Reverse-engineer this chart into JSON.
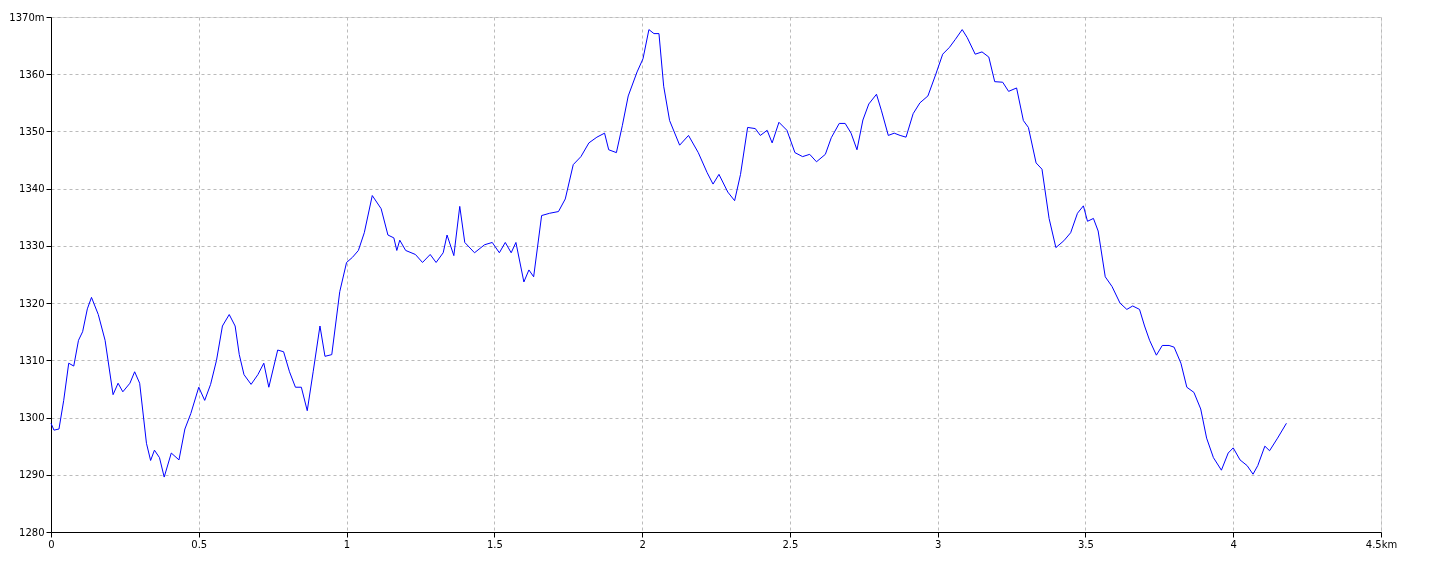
{
  "chart_data": {
    "type": "line",
    "x": [
      0,
      0.01,
      0.027,
      0.043,
      0.06,
      0.077,
      0.093,
      0.107,
      0.123,
      0.137,
      0.16,
      0.183,
      0.21,
      0.227,
      0.243,
      0.267,
      0.283,
      0.3,
      0.323,
      0.337,
      0.35,
      0.367,
      0.383,
      0.407,
      0.433,
      0.453,
      0.473,
      0.5,
      0.52,
      0.54,
      0.56,
      0.58,
      0.603,
      0.623,
      0.637,
      0.653,
      0.677,
      0.7,
      0.72,
      0.737,
      0.767,
      0.787,
      0.807,
      0.827,
      0.847,
      0.867,
      0.887,
      0.91,
      0.927,
      0.95,
      0.977,
      1.0,
      1.02,
      1.04,
      1.06,
      1.087,
      1.117,
      1.14,
      1.16,
      1.17,
      1.18,
      1.2,
      1.233,
      1.257,
      1.283,
      1.303,
      1.327,
      1.34,
      1.363,
      1.383,
      1.4,
      1.433,
      1.467,
      1.493,
      1.517,
      1.537,
      1.557,
      1.573,
      1.6,
      1.617,
      1.633,
      1.66,
      1.687,
      1.717,
      1.74,
      1.767,
      1.793,
      1.82,
      1.847,
      1.873,
      1.887,
      1.913,
      1.933,
      1.953,
      1.983,
      2.003,
      2.023,
      2.04,
      2.057,
      2.073,
      2.093,
      2.127,
      2.157,
      2.19,
      2.22,
      2.24,
      2.26,
      2.29,
      2.313,
      2.333,
      2.357,
      2.383,
      2.4,
      2.423,
      2.44,
      2.463,
      2.49,
      2.517,
      2.543,
      2.567,
      2.59,
      2.62,
      2.64,
      2.667,
      2.687,
      2.707,
      2.727,
      2.747,
      2.767,
      2.793,
      2.81,
      2.833,
      2.853,
      2.873,
      2.893,
      2.917,
      2.94,
      2.967,
      2.993,
      3.017,
      3.04,
      3.06,
      3.083,
      3.1,
      3.127,
      3.15,
      3.173,
      3.193,
      3.22,
      3.24,
      3.267,
      3.29,
      3.307,
      3.333,
      3.353,
      3.377,
      3.4,
      3.427,
      3.45,
      3.473,
      3.493,
      3.507,
      3.527,
      3.543,
      3.567,
      3.59,
      3.617,
      3.64,
      3.66,
      3.683,
      3.7,
      3.717,
      3.74,
      3.76,
      3.783,
      3.8,
      3.823,
      3.843,
      3.867,
      3.89,
      3.91,
      3.933,
      3.96,
      3.983,
      4.0,
      4.023,
      4.047,
      4.067,
      4.083,
      4.107,
      4.123,
      4.15,
      4.18
    ],
    "series": [
      {
        "color": "#0000ff",
        "values": [
          1299,
          1297.8,
          1298,
          1303,
          1309.5,
          1309,
          1313.5,
          1315,
          1319,
          1321,
          1318,
          1313.5,
          1304,
          1306,
          1304.5,
          1306,
          1308,
          1306,
          1295.5,
          1292.5,
          1294.3,
          1293,
          1289.6,
          1293.8,
          1292.6,
          1298,
          1300.7,
          1305.3,
          1303,
          1305.8,
          1310,
          1316,
          1318,
          1316,
          1311,
          1307.5,
          1305.8,
          1307.5,
          1309.5,
          1305.3,
          1311.8,
          1311.5,
          1308,
          1305.3,
          1305.3,
          1301.2,
          1308,
          1316,
          1310.7,
          1311,
          1322,
          1327.1,
          1328,
          1329.2,
          1332.3,
          1338.8,
          1336.5,
          1331.9,
          1331.4,
          1329.2,
          1331,
          1329.2,
          1328.5,
          1327.1,
          1328.5,
          1327.1,
          1328.8,
          1331.9,
          1328.3,
          1336.9,
          1330.6,
          1328.8,
          1330.2,
          1330.6,
          1328.8,
          1330.6,
          1328.8,
          1330.6,
          1323.7,
          1325.8,
          1324.6,
          1335.3,
          1335.7,
          1336,
          1338.2,
          1344.2,
          1345.6,
          1348,
          1349,
          1349.7,
          1346.8,
          1346.3,
          1351,
          1356.2,
          1360.4,
          1362.7,
          1367.8,
          1367.1,
          1367.1,
          1357.9,
          1351.9,
          1347.6,
          1349.3,
          1346.3,
          1342.8,
          1340.8,
          1342.5,
          1339.4,
          1337.9,
          1342.5,
          1350.7,
          1350.5,
          1349.3,
          1350.2,
          1348,
          1351.6,
          1350.2,
          1346.3,
          1345.6,
          1346,
          1344.7,
          1346,
          1348.9,
          1351.4,
          1351.4,
          1349.7,
          1346.8,
          1352,
          1354.8,
          1356.5,
          1353.6,
          1349.3,
          1349.7,
          1349.3,
          1349,
          1353.1,
          1355,
          1356.2,
          1359.9,
          1363.5,
          1364.7,
          1366.1,
          1367.8,
          1366.4,
          1363.5,
          1363.9,
          1363,
          1358.7,
          1358.6,
          1357,
          1357.6,
          1351.9,
          1350.7,
          1344.5,
          1343.4,
          1334.8,
          1329.7,
          1330.9,
          1332.3,
          1335.7,
          1337,
          1334.3,
          1334.8,
          1332.6,
          1324.6,
          1322.9,
          1320,
          1318.9,
          1319.5,
          1318.9,
          1316,
          1313.5,
          1310.9,
          1312.6,
          1312.6,
          1312.3,
          1309.5,
          1305.3,
          1304.4,
          1301.5,
          1296.4,
          1293,
          1290.8,
          1293.8,
          1294.7,
          1292.6,
          1291.6,
          1290.1,
          1291.6,
          1295,
          1294.2,
          1296.4,
          1299
        ]
      }
    ],
    "xlim": [
      0,
      4.5
    ],
    "xticks": [
      0,
      0.5,
      1,
      1.5,
      2,
      2.5,
      3,
      3.5,
      4,
      {
        "value": 4.5,
        "label": "4.5km"
      }
    ],
    "ylim": [
      1280,
      1370
    ],
    "yticks": [
      1280,
      1290,
      1300,
      1310,
      1320,
      1330,
      1340,
      1350,
      1360,
      {
        "value": 1370,
        "label": "1370m"
      }
    ],
    "grid": true,
    "marker": "none",
    "line_style": "solid"
  }
}
